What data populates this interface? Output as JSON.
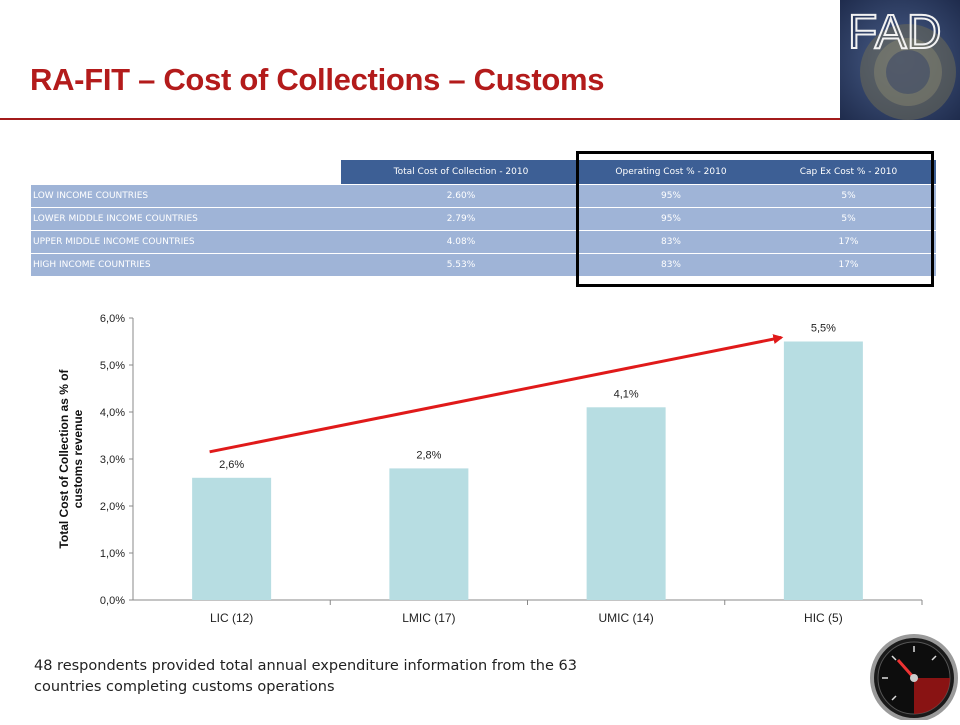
{
  "slide": {
    "title": "RA-FIT – Cost of Collections – Customs",
    "logo_text": "FAD",
    "footnote_line1": "48 respondents provided total annual expenditure information from the 63",
    "footnote_line2": "countries completing customs operations"
  },
  "table": {
    "headers": [
      "",
      "Total Cost of Collection - 2010",
      "Operating Cost % - 2010",
      "Cap Ex Cost % - 2010"
    ],
    "rows": [
      [
        "LOW INCOME COUNTRIES",
        "2.60%",
        "95%",
        "5%"
      ],
      [
        "LOWER MIDDLE INCOME COUNTRIES",
        "2.79%",
        "95%",
        "5%"
      ],
      [
        "UPPER MIDDLE INCOME COUNTRIES",
        "4.08%",
        "83%",
        "17%"
      ],
      [
        "HIGH INCOME COUNTRIES",
        "5.53%",
        "83%",
        "17%"
      ]
    ]
  },
  "chart_data": {
    "type": "bar",
    "categories": [
      "LIC (12)",
      "LMIC (17)",
      "UMIC (14)",
      "HIC (5)"
    ],
    "values": [
      2.6,
      2.8,
      4.1,
      5.5
    ],
    "data_labels": [
      "2,6%",
      "2,8%",
      "4,1%",
      "5,5%"
    ],
    "ylabel": "Total Cost of Collection as % of customs revenue",
    "ylim": [
      0,
      6
    ],
    "yticks": [
      "0,0%",
      "1,0%",
      "2,0%",
      "3,0%",
      "4,0%",
      "5,0%",
      "6,0%"
    ],
    "grid": false,
    "legend": "none",
    "bar_color": "#b7dde2",
    "trend_arrow": {
      "from_category": "LIC (12)",
      "to_category": "HIC (5)",
      "color": "#e01a1a"
    }
  },
  "colors": {
    "title": "#b31b1b",
    "table_header": "#3d5f95",
    "table_row": "#9fb4d7"
  },
  "icons": {
    "logo": "imf-fad-logo",
    "gauge": "speedometer-icon"
  }
}
